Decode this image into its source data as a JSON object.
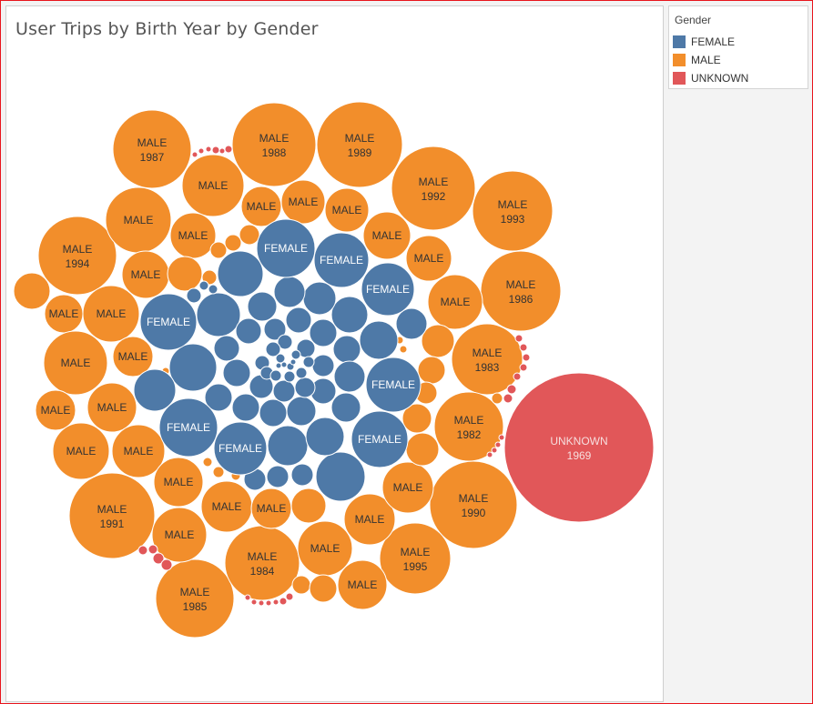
{
  "chart_data": {
    "type": "packed-bubble",
    "title": "User Trips by Birth Year by Gender",
    "legend": {
      "title": "Gender",
      "placement": "top-right",
      "entries": [
        {
          "label": "FEMALE",
          "color": "#4e79a7"
        },
        {
          "label": "MALE",
          "color": "#f28e2b"
        },
        {
          "label": "UNKNOWN",
          "color": "#e15759"
        }
      ]
    },
    "bubbles": [
      {
        "gender": "UNKNOWN",
        "year": "1969",
        "value": 100
      },
      {
        "gender": "MALE",
        "year": "1990",
        "value": 35
      },
      {
        "gender": "MALE",
        "year": "1988",
        "value": 33
      },
      {
        "gender": "MALE",
        "year": "1989",
        "value": 35
      },
      {
        "gender": "MALE",
        "year": "1986",
        "value": 29
      },
      {
        "gender": "MALE",
        "year": "1987",
        "value": 28
      },
      {
        "gender": "MALE",
        "year": "1991",
        "value": 34
      },
      {
        "gender": "MALE",
        "year": "1992",
        "value": 31
      },
      {
        "gender": "MALE",
        "year": "1993",
        "value": 30
      },
      {
        "gender": "MALE",
        "year": "1985",
        "value": 27
      },
      {
        "gender": "MALE",
        "year": "1984",
        "value": 25
      },
      {
        "gender": "MALE",
        "year": "1983",
        "value": 23
      },
      {
        "gender": "MALE",
        "year": "1994",
        "value": 27
      },
      {
        "gender": "MALE",
        "year": "1995",
        "value": 23
      },
      {
        "gender": "MALE",
        "year": "1982",
        "value": 19
      }
    ],
    "label_female": "FEMALE",
    "label_male": "MALE"
  }
}
